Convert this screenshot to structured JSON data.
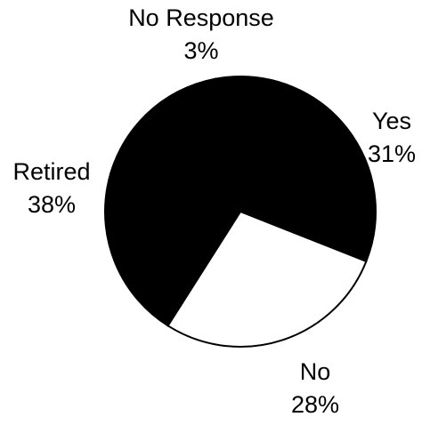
{
  "chart_data": {
    "type": "pie",
    "slices": [
      {
        "label": "Yes",
        "value": 31,
        "display": "31%",
        "color": "#000000"
      },
      {
        "label": "No",
        "value": 28,
        "display": "28%",
        "color": "#ffffff"
      },
      {
        "label": "Retired",
        "value": 38,
        "display": "38%",
        "color": "#000000"
      },
      {
        "label": "No Response",
        "value": 3,
        "display": "3%",
        "color": "#000000"
      }
    ],
    "outline_color": "#000000",
    "start": "top, clockwise"
  }
}
